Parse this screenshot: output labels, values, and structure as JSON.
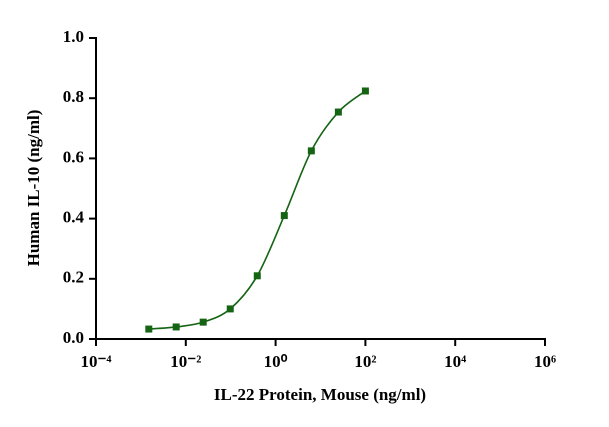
{
  "chart_data": {
    "type": "scatter",
    "xlabel": "IL-22 Protein, Mouse  (ng/ml)",
    "ylabel": "Human IL-10 (ng/ml)",
    "x": [
      0.0015,
      0.0061,
      0.0244,
      0.0977,
      0.3906,
      1.5625,
      6.25,
      25,
      100
    ],
    "series": [
      {
        "color": "#146414",
        "values": [
          0.033,
          0.04,
          0.056,
          0.1,
          0.21,
          0.41,
          0.625,
          0.754,
          0.824
        ]
      }
    ],
    "xscale": "log",
    "xlim": [
      0.0001,
      1000000
    ],
    "xticks": [
      {
        "value": 0.0001,
        "label": "10⁻⁴"
      },
      {
        "value": 0.01,
        "label": "10⁻²"
      },
      {
        "value": 1,
        "label": "10⁰"
      },
      {
        "value": 100,
        "label": "10²"
      },
      {
        "value": 10000,
        "label": "10⁴"
      },
      {
        "value": 1000000,
        "label": "10⁶"
      }
    ],
    "ylim": [
      0,
      1
    ],
    "yticks": [
      {
        "value": 0,
        "label": "0.0"
      },
      0.2,
      0.4,
      0.6,
      0.8,
      {
        "value": 1,
        "label": "1.0"
      }
    ]
  }
}
